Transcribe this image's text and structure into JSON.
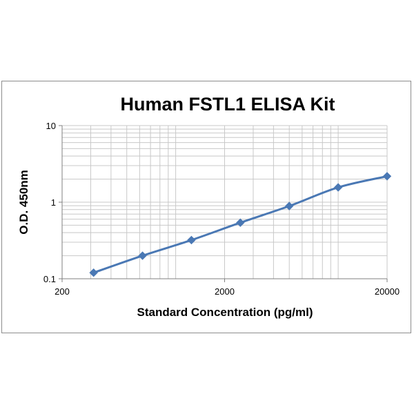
{
  "chart_data": {
    "type": "line",
    "title": "Human FSTL1 ELISA Kit",
    "xlabel": "Standard Concentration (pg/ml)",
    "ylabel": "O.D.  450nm",
    "x_scale": "log",
    "y_scale": "log",
    "xlim": [
      200,
      20000
    ],
    "ylim": [
      0.1,
      10
    ],
    "x_ticks": [
      {
        "value": 200,
        "label": "200"
      },
      {
        "value": 2000,
        "label": "2000"
      },
      {
        "value": 20000,
        "label": "20000"
      }
    ],
    "y_ticks": [
      {
        "value": 0.1,
        "label": "0.1"
      },
      {
        "value": 1,
        "label": "1"
      },
      {
        "value": 10,
        "label": "10"
      }
    ],
    "grid": true,
    "legend": "none",
    "series": [
      {
        "marker": "diamond",
        "color": "#4a78b4",
        "points": [
          {
            "x": 312.5,
            "y": 0.12
          },
          {
            "x": 625,
            "y": 0.2
          },
          {
            "x": 1250,
            "y": 0.32
          },
          {
            "x": 2500,
            "y": 0.54
          },
          {
            "x": 5000,
            "y": 0.89
          },
          {
            "x": 10000,
            "y": 1.56
          },
          {
            "x": 20000,
            "y": 2.18
          }
        ]
      }
    ]
  }
}
